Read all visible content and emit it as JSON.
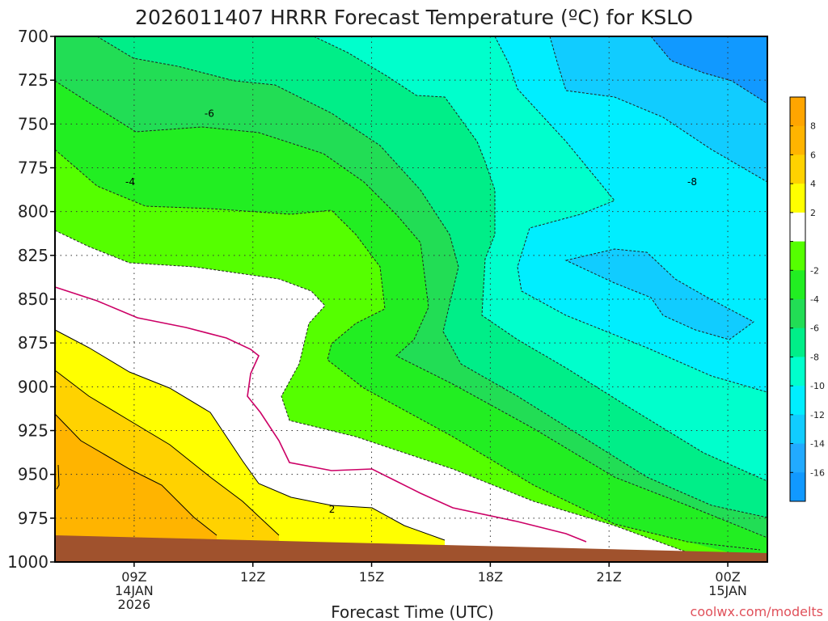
{
  "chart_data": {
    "type": "contour",
    "title": "2026011407 HRRR Forecast Temperature (ºC) for KSLO",
    "xlabel": "Forecast Time (UTC)",
    "ylabel": "",
    "credit": "coolwx.com/modelts",
    "x_range_hours": [
      7,
      25
    ],
    "y_levels_mb": [
      "700",
      "725",
      "750",
      "775",
      "800",
      "825",
      "850",
      "875",
      "900",
      "925",
      "950",
      "975",
      "1000"
    ],
    "x_ticks": [
      {
        "hour": 9,
        "lines": [
          "09Z",
          "14JAN",
          "2026"
        ]
      },
      {
        "hour": 12,
        "lines": [
          "12Z"
        ]
      },
      {
        "hour": 15,
        "lines": [
          "15Z"
        ]
      },
      {
        "hour": 18,
        "lines": [
          "18Z"
        ]
      },
      {
        "hour": 21,
        "lines": [
          "21Z"
        ]
      },
      {
        "hour": 24,
        "lines": [
          "00Z",
          "15JAN"
        ]
      }
    ],
    "contour_interval_c": 2,
    "colorbar": {
      "labels": [
        "8",
        "6",
        "4",
        "2",
        "",
        "-2",
        "-4",
        "-6",
        "-8",
        "-10",
        "-12",
        "-14",
        "-16"
      ],
      "colors": [
        "#ffa500",
        "#ffb400",
        "#ffd200",
        "#ffff00",
        "#ffffff",
        "#55ff00",
        "#22ee22",
        "#22dd55",
        "#00ee88",
        "#00ffcc",
        "#00eeff",
        "#11ccff",
        "#22aaff",
        "#1199ff"
      ]
    },
    "contour_labels": [
      {
        "text": "-6",
        "hour": 10.9,
        "mb": 744
      },
      {
        "text": "-4",
        "hour": 8.9,
        "mb": 783
      },
      {
        "text": "2",
        "hour": 14.0,
        "mb": 970
      },
      {
        "text": "-8",
        "hour": 23.1,
        "mb": 783
      }
    ],
    "terrain_color": "#a0522d",
    "surface_pressure_mb": [
      [
        7,
        988
      ],
      [
        25,
        996
      ]
    ]
  }
}
